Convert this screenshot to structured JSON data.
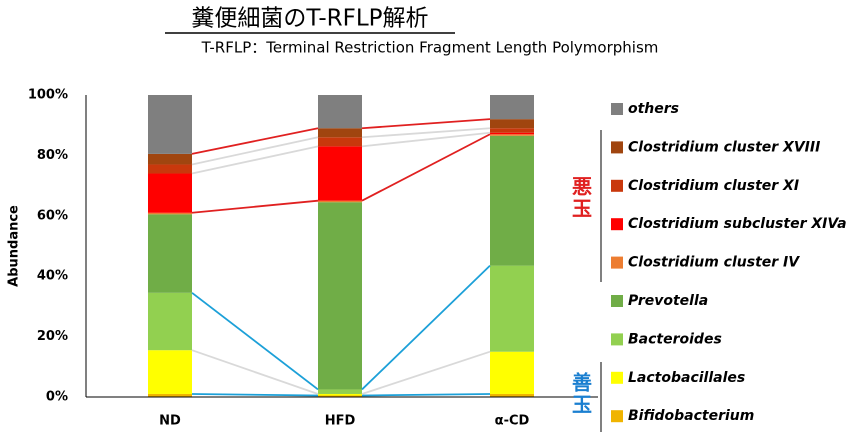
{
  "chart_data": {
    "type": "stacked-bar",
    "title": "糞便細菌のT-RFLP解析",
    "subtitle": "T-RFLP：Terminal Restriction Fragment Length Polymorphism",
    "y_label": "Abundance",
    "categories": [
      "ND",
      "HFD",
      "α-CD"
    ],
    "ylim": [
      0,
      100
    ],
    "yticks": [
      {
        "value": 0,
        "label": "0%"
      },
      {
        "value": 20,
        "label": "20%"
      },
      {
        "value": 40,
        "label": "40%"
      },
      {
        "value": 60,
        "label": "60%"
      },
      {
        "value": 80,
        "label": "80%"
      },
      {
        "value": 100,
        "label": "100%"
      }
    ],
    "series": [
      {
        "name": "Bifidobacterium",
        "color": "#f0b400",
        "link_color": "#1ca0d8",
        "values": [
          1,
          0.5,
          1
        ]
      },
      {
        "name": "Lactobacillales",
        "color": "#ffff00",
        "link_color": "#d9d9d9",
        "values": [
          14.5,
          0.5,
          14
        ]
      },
      {
        "name": "Bacteroides",
        "color": "#92d050",
        "link_color": "#1ca0d8",
        "values": [
          19,
          1.5,
          28.5
        ]
      },
      {
        "name": "Prevotella",
        "color": "#70ad47",
        "values": [
          26,
          62,
          43
        ]
      },
      {
        "name": "Clostridium cluster IV",
        "color": "#ed7d31",
        "link_color": "#e02020",
        "values": [
          0.5,
          0.5,
          0.5
        ]
      },
      {
        "name": "Clostridium subcluster XIVa",
        "color": "#ff0000",
        "link_color": "#d9d9d9",
        "values": [
          13,
          18,
          0.5
        ]
      },
      {
        "name": "Clostridium cluster XI",
        "color": "#c9380c",
        "link_color": "#d9d9d9",
        "values": [
          3,
          3,
          1.5
        ]
      },
      {
        "name": "Clostridium cluster XVIII",
        "color": "#a0450f",
        "link_color": "#e02020",
        "values": [
          3.5,
          3,
          3
        ]
      },
      {
        "name": "others",
        "color": "#7f7f7f",
        "values": [
          19.5,
          11,
          8
        ]
      }
    ],
    "annotations": [
      {
        "text": "悪玉",
        "color": "#e02020"
      },
      {
        "text": "善玉",
        "color": "#1a7fd0"
      }
    ]
  }
}
